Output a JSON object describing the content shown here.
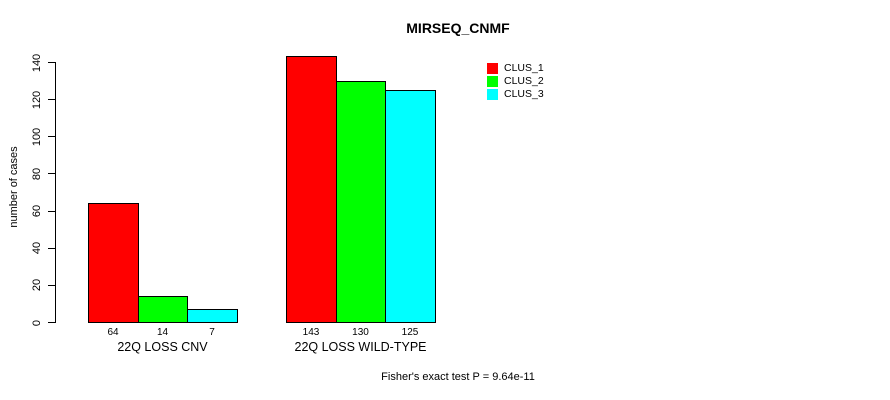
{
  "title": "MIRSEQ_CNMF",
  "caption": "Fisher's exact test P = 9.64e-11",
  "chart_data": {
    "type": "bar",
    "title": "MIRSEQ_CNMF",
    "xlabel": "",
    "ylabel": "number of cases",
    "ylim": [
      0,
      140
    ],
    "yticks": [
      0,
      20,
      40,
      60,
      80,
      100,
      120,
      140
    ],
    "grid": false,
    "background": "#ffffff",
    "bar_border_color": "#000000",
    "categories": [
      "22Q LOSS CNV",
      "22Q LOSS WILD-TYPE"
    ],
    "series": [
      {
        "name": "CLUS_1",
        "color": "#ff0000",
        "values": [
          64,
          143
        ]
      },
      {
        "name": "CLUS_2",
        "color": "#00ff00",
        "values": [
          14,
          130
        ]
      },
      {
        "name": "CLUS_3",
        "color": "#00ffff",
        "values": [
          7,
          125
        ]
      }
    ],
    "bar_value_labels": [
      [
        "64",
        "14",
        "7"
      ],
      [
        "143",
        "130",
        "125"
      ]
    ],
    "legend_position": "top-right",
    "legend": [
      {
        "label": "CLUS_1",
        "color": "#ff0000"
      },
      {
        "label": "CLUS_2",
        "color": "#00ff00"
      },
      {
        "label": "CLUS_3",
        "color": "#00ffff"
      }
    ],
    "annotation": "Fisher's exact test P = 9.64e-11"
  }
}
